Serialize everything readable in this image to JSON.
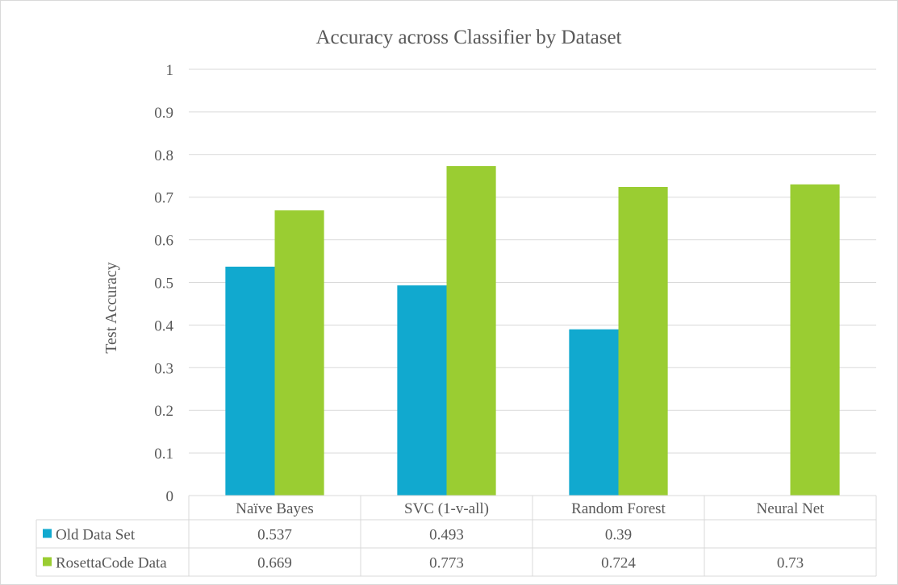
{
  "chart_data": {
    "type": "bar",
    "title": "Accuracy across Classifier by Dataset",
    "xlabel": "",
    "ylabel": "Test Accuracy",
    "ylim": [
      0,
      1
    ],
    "yticks": [
      "0",
      "0.1",
      "0.2",
      "0.3",
      "0.4",
      "0.5",
      "0.6",
      "0.7",
      "0.8",
      "0.9",
      "1"
    ],
    "grid": true,
    "legend": "data-table",
    "categories": [
      "Naïve Bayes",
      "SVC (1-v-all)",
      "Random Forest",
      "Neural Net"
    ],
    "series": [
      {
        "name": "Old Data Set",
        "color": "#11a9cf",
        "values": [
          0.537,
          0.493,
          0.39,
          null
        ],
        "labels": [
          "0.537",
          "0.493",
          "0.39",
          ""
        ]
      },
      {
        "name": "RosettaCode Data",
        "color": "#9acd32",
        "values": [
          0.669,
          0.773,
          0.724,
          0.73
        ],
        "labels": [
          "0.669",
          "0.773",
          "0.724",
          "0.73"
        ]
      }
    ]
  }
}
